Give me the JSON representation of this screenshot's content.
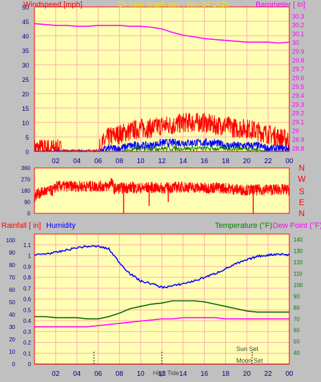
{
  "chart_data": [
    {
      "type": "line",
      "title": "24 hour graph day : July 24 2025",
      "left_axis_label": "Windspeed [mph]",
      "right_axis_label": "Barometer [ in]",
      "x_ticks": [
        "02",
        "04",
        "06",
        "08",
        "10",
        "12",
        "14",
        "16",
        "18",
        "20",
        "22",
        "00"
      ],
      "x_range": [
        0,
        24
      ],
      "grid": true,
      "left_ylim": [
        0,
        50
      ],
      "left_ticks": [
        0,
        5,
        10,
        15,
        20,
        25,
        30,
        35,
        40,
        45,
        50
      ],
      "right_ylim": [
        28.76,
        30.4
      ],
      "right_ticks": [
        "28.8",
        "28.9",
        "29",
        "29.1",
        "29.2",
        "29.3",
        "29.4",
        "29.5",
        "29.6",
        "29.7",
        "29.8",
        "29.9",
        "30",
        "30.1",
        "30.2",
        "30.3"
      ],
      "series": [
        {
          "name": "Barometer",
          "axis": "right",
          "color": "#ff00ff",
          "x": [
            0,
            1,
            2,
            3,
            4,
            5,
            6,
            7,
            8,
            9,
            10,
            11,
            12,
            13,
            14,
            15,
            16,
            17,
            18,
            19,
            20,
            21,
            22,
            23,
            24
          ],
          "y": [
            30.21,
            30.2,
            30.19,
            30.19,
            30.18,
            30.18,
            30.19,
            30.19,
            30.19,
            30.18,
            30.18,
            30.17,
            30.15,
            30.11,
            30.08,
            30.06,
            30.04,
            30.03,
            30.02,
            30.01,
            30.0,
            30.0,
            30.0,
            29.99,
            30.0
          ]
        },
        {
          "name": "Wind Gust",
          "axis": "left",
          "color": "#ff0000",
          "style": "noisy",
          "x": [
            0,
            1,
            2,
            3,
            4,
            5,
            6,
            6.5,
            7,
            8,
            9,
            10,
            11,
            12,
            13,
            14,
            15,
            16,
            17,
            18,
            19,
            20,
            21,
            22,
            23,
            24
          ],
          "y": [
            1,
            1,
            1,
            0,
            0,
            0,
            0,
            3,
            5,
            6,
            7,
            8,
            8,
            9,
            9,
            10,
            10,
            10,
            9,
            9,
            8,
            8,
            7,
            6,
            5,
            4
          ]
        },
        {
          "name": "Wind Speed",
          "axis": "left",
          "color": "#0000ff",
          "style": "noisy",
          "x": [
            0,
            6,
            7,
            8,
            9,
            10,
            11,
            12,
            13,
            14,
            15,
            16,
            17,
            18,
            19,
            20,
            21,
            22,
            23,
            24
          ],
          "y": [
            0,
            0,
            1,
            1,
            2,
            2,
            2,
            3,
            3,
            3,
            3,
            3,
            3,
            2,
            2,
            2,
            2,
            1,
            1,
            1
          ]
        },
        {
          "name": "Wind Avg",
          "axis": "left",
          "color": "#008000",
          "style": "noisy",
          "x": [
            0,
            8,
            10,
            12,
            14,
            16,
            18,
            20,
            22,
            24
          ],
          "y": [
            0,
            0,
            1,
            1,
            1,
            1,
            1,
            1,
            0,
            0
          ]
        }
      ]
    },
    {
      "type": "line",
      "title": "",
      "x_ticks": [],
      "x_range": [
        0,
        24
      ],
      "ylim": [
        0,
        360
      ],
      "y_ticks": [
        0,
        90,
        180,
        270,
        360
      ],
      "direction_labels": [
        "N",
        "W",
        "S",
        "E",
        "N"
      ],
      "series": [
        {
          "name": "Wind Direction",
          "color": "#ff0000",
          "style": "noisy",
          "x": [
            0,
            0.2,
            0.5,
            1,
            1.8,
            2,
            3,
            4,
            5,
            6,
            6.5,
            7,
            7.2,
            7.5,
            8,
            9,
            10,
            11,
            12,
            13,
            14,
            15,
            16,
            17,
            18,
            19,
            20,
            21,
            22,
            23,
            24
          ],
          "y": [
            120,
            155,
            160,
            175,
            180,
            215,
            215,
            215,
            215,
            215,
            215,
            215,
            260,
            195,
            200,
            205,
            200,
            205,
            200,
            205,
            210,
            205,
            200,
            205,
            200,
            190,
            185,
            185,
            190,
            190,
            185
          ]
        },
        {
          "name": "Wind Direction spikes",
          "color": "#ff0000",
          "style": "spikes",
          "x": [
            8.4,
            10.8,
            12.6,
            20.6
          ],
          "y": [
            0,
            60,
            90,
            0
          ]
        }
      ]
    },
    {
      "type": "line",
      "title": "",
      "left_outer_axis_label": "Rainfall [ in]",
      "left_inner_axis_label": "Humidity",
      "right_axis_label_a": "Temperature (°F)",
      "right_axis_label_b": "Dew Point (°F)",
      "x_ticks": [
        "02",
        "04",
        "06",
        "08",
        "10",
        "12",
        "14",
        "16",
        "18",
        "20",
        "22",
        "00"
      ],
      "x_range": [
        0,
        24
      ],
      "grid": true,
      "rain_ylim": [
        0,
        1.2
      ],
      "rain_ticks": [
        "0",
        "0.1",
        "0.2",
        "0.3",
        "0.4",
        "0.5",
        "0.6",
        "0.7",
        "0.8",
        "0.9",
        "1",
        "1.1"
      ],
      "humidity_ylim": [
        0,
        105
      ],
      "humidity_ticks": [
        0,
        10,
        20,
        30,
        40,
        50,
        60,
        70,
        80,
        90,
        100
      ],
      "temp_ylim": [
        30,
        145
      ],
      "temp_ticks": [
        40,
        50,
        60,
        70,
        80,
        90,
        100,
        110,
        120,
        130,
        140
      ],
      "annotations": [
        {
          "text": "Sun Set",
          "x": 20.3
        },
        {
          "text": "Moon Set",
          "x": 20.6
        },
        {
          "text": "High Tide",
          "x": 12.0
        }
      ],
      "series": [
        {
          "name": "Humidity",
          "axis": "humidity",
          "color": "#0000ff",
          "x": [
            0,
            1,
            2,
            3,
            4,
            5,
            6,
            7,
            8,
            9,
            10,
            11,
            12,
            13,
            14,
            15,
            16,
            17,
            18,
            19,
            20,
            21,
            22,
            23,
            24
          ],
          "y": [
            88,
            89,
            90,
            92,
            94,
            95,
            95,
            93,
            82,
            73,
            67,
            65,
            62,
            63,
            65,
            67,
            70,
            73,
            77,
            81,
            84,
            87,
            88,
            89,
            88
          ]
        },
        {
          "name": "Temperature",
          "axis": "temp",
          "color": "#006400",
          "x": [
            0,
            1,
            2,
            3,
            4,
            5,
            6,
            7,
            8,
            9,
            10,
            11,
            12,
            13,
            14,
            15,
            16,
            17,
            18,
            19,
            20,
            21,
            22,
            23,
            24
          ],
          "y": [
            72,
            72,
            71,
            71,
            71,
            70,
            70,
            72,
            75,
            79,
            81,
            83,
            84,
            86,
            86,
            86,
            85,
            83,
            81,
            79,
            77,
            76,
            76,
            76,
            76
          ]
        },
        {
          "name": "Dew Point",
          "axis": "temp",
          "color": "#ff00ff",
          "x": [
            0,
            1,
            2,
            3,
            4,
            5,
            6,
            7,
            8,
            9,
            10,
            11,
            12,
            13,
            14,
            15,
            16,
            17,
            18,
            19,
            20,
            21,
            22,
            23,
            24
          ],
          "y": [
            63,
            63,
            63,
            63,
            63,
            63,
            64,
            65,
            66,
            67,
            68,
            69,
            70,
            70,
            71,
            71,
            71,
            71,
            70,
            70,
            70,
            70,
            70,
            70,
            70
          ]
        },
        {
          "name": "Rainfall",
          "axis": "rain",
          "color": "#000000",
          "x": [
            0,
            24
          ],
          "y": [
            0,
            0
          ]
        }
      ]
    }
  ],
  "colors": {
    "panel_bg": "#ffffb4",
    "grid": "#ffaaaa",
    "frame": "#ff0000",
    "title": "#e8e800",
    "wind_label": "#ff0000",
    "baro_label": "#ff00ff",
    "humidity_label": "#0000ff",
    "temperature_label": "#008000",
    "dewpoint_label": "#ff00ff",
    "temp_axis": "#008000",
    "direction_letters": "#ff0000"
  }
}
